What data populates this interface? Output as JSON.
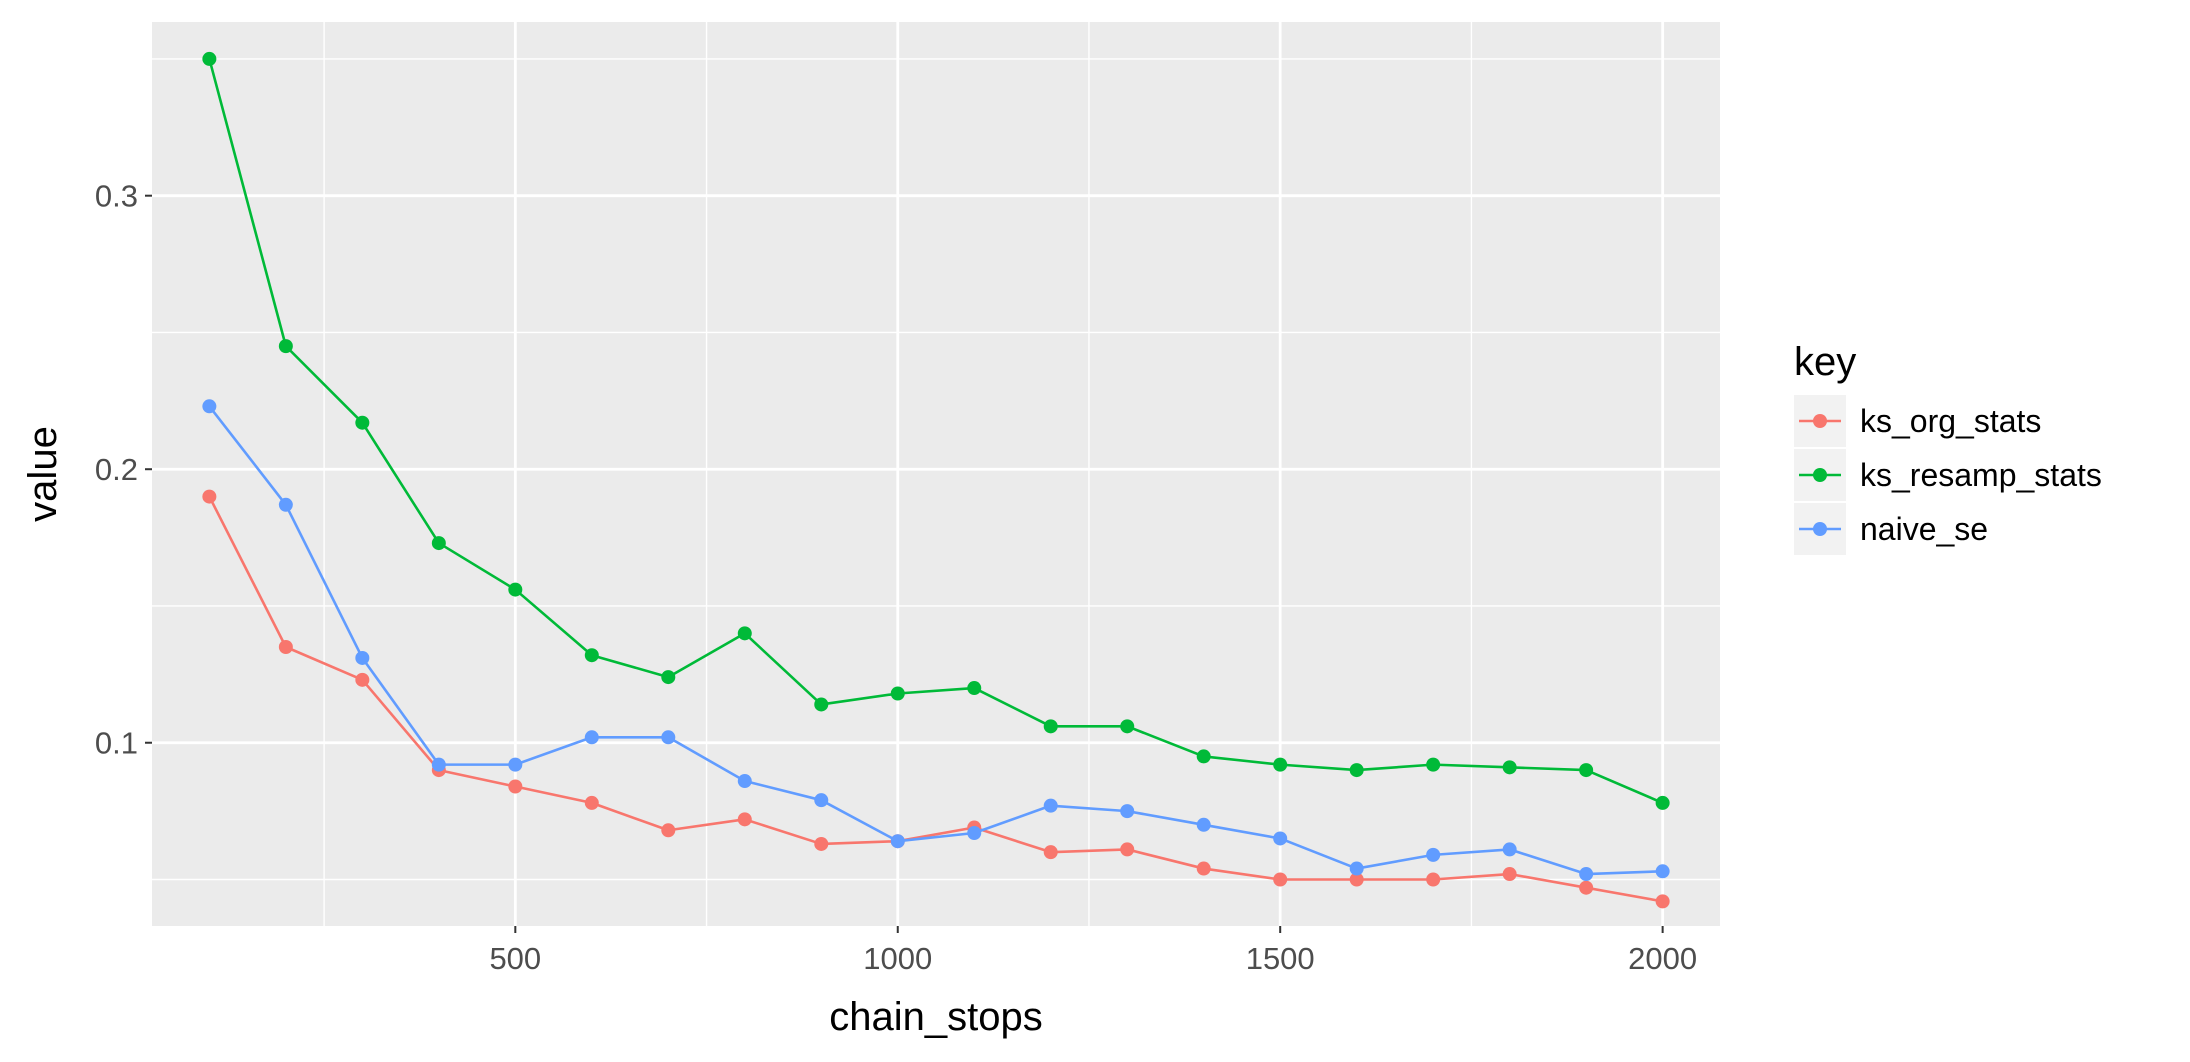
{
  "chart_data": {
    "type": "line",
    "title": "",
    "xlabel": "chain_stops",
    "ylabel": "value",
    "xlim": [
      25,
      2075
    ],
    "ylim": [
      0.033,
      0.3635
    ],
    "x_ticks": [
      500,
      1000,
      1500,
      2000
    ],
    "x_minor": [
      250,
      750,
      1250,
      1750
    ],
    "y_ticks": [
      0.1,
      0.2,
      0.3
    ],
    "y_minor": [
      0.05,
      0.15,
      0.25,
      0.35
    ],
    "x_tick_labels": [
      "500",
      "1000",
      "1500",
      "2000"
    ],
    "y_tick_labels": [
      "0.1",
      "0.2",
      "0.3"
    ],
    "grid": true,
    "legend": {
      "title": "key",
      "position": "right"
    },
    "x": [
      100,
      200,
      300,
      400,
      500,
      600,
      700,
      800,
      900,
      1000,
      1100,
      1200,
      1300,
      1400,
      1500,
      1600,
      1700,
      1800,
      1900,
      2000
    ],
    "series": [
      {
        "name": "ks_org_stats",
        "color": "#F8766D",
        "values": [
          0.19,
          0.135,
          0.123,
          0.09,
          0.084,
          0.078,
          0.068,
          0.072,
          0.063,
          0.064,
          0.069,
          0.06,
          0.061,
          0.054,
          0.05,
          0.05,
          0.05,
          0.052,
          0.047,
          0.042
        ]
      },
      {
        "name": "ks_resamp_stats",
        "color": "#00BA38",
        "values": [
          0.35,
          0.245,
          0.217,
          0.173,
          0.156,
          0.132,
          0.124,
          0.14,
          0.114,
          0.118,
          0.12,
          0.106,
          0.106,
          0.095,
          0.092,
          0.09,
          0.092,
          0.091,
          0.09,
          0.078
        ]
      },
      {
        "name": "naive_se",
        "color": "#619CFF",
        "values": [
          0.223,
          0.187,
          0.131,
          0.092,
          0.092,
          0.102,
          0.102,
          0.086,
          0.079,
          0.064,
          0.067,
          0.077,
          0.075,
          0.07,
          0.065,
          0.054,
          0.059,
          0.061,
          0.052,
          0.053
        ]
      }
    ]
  }
}
